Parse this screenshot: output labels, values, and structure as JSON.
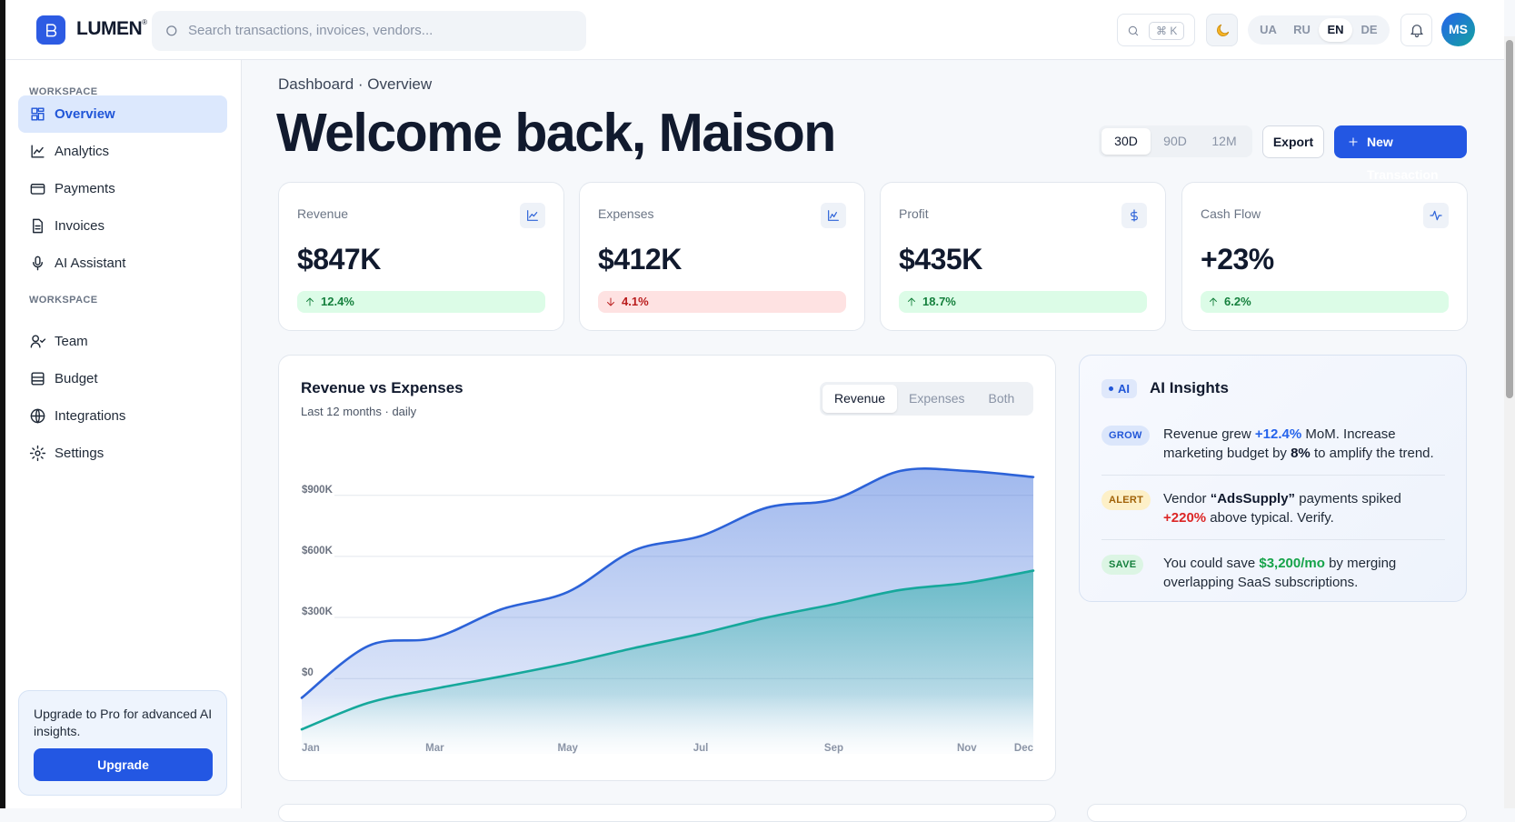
{
  "header": {
    "brand": "LUMEN",
    "brand_mark": "®",
    "search_placeholder": "Search transactions, invoices, vendors...",
    "shortcut": "⌘ K",
    "languages": [
      "UA",
      "RU",
      "EN",
      "DE"
    ],
    "avatar": "MS"
  },
  "sidebar": {
    "sections": [
      {
        "title": "WORKSPACE",
        "items": [
          "Overview",
          "Analytics",
          "Payments",
          "Invoices",
          "AI Assistant"
        ]
      },
      {
        "title": "WORKSPACE",
        "items": [
          "Team",
          "Budget",
          "Integrations",
          "Settings"
        ]
      }
    ],
    "upgrade": {
      "text": "Upgrade to Pro for advanced AI insights.",
      "button": "Upgrade"
    }
  },
  "page": {
    "breadcrumb": "Dashboard · Overview",
    "title": "Welcome back, Maison",
    "ranges": [
      "30D",
      "90D",
      "12M"
    ],
    "export": "Export",
    "new_transaction": "New Transaction"
  },
  "kpis": [
    {
      "label": "Revenue",
      "value": "$847K",
      "change": "12.4%",
      "direction": "up"
    },
    {
      "label": "Expenses",
      "value": "$412K",
      "change": "4.1%",
      "direction": "down"
    },
    {
      "label": "Profit",
      "value": "$435K",
      "change": "18.7%",
      "direction": "up"
    },
    {
      "label": "Cash Flow",
      "value": "+23%",
      "change": "6.2%",
      "direction": "up"
    }
  ],
  "insights": {
    "badge": "AI",
    "title": "AI Insights",
    "items": [
      {
        "tag": "GROW",
        "tone": "blue",
        "parts": [
          {
            "text": "Revenue grew "
          },
          {
            "text": "+12.4%",
            "tone": "blue"
          },
          {
            "text": " MoM. Increase marketing budget by "
          },
          {
            "text": "8%",
            "tone": "bold"
          },
          {
            "text": " to amplify the trend."
          }
        ]
      },
      {
        "tag": "ALERT",
        "tone": "amber",
        "parts": [
          {
            "text": "Vendor "
          },
          {
            "text": "“AdsSupply”",
            "tone": "bold"
          },
          {
            "text": " payments spiked "
          },
          {
            "text": "+220%",
            "tone": "red"
          },
          {
            "text": " above typical. Verify."
          }
        ]
      },
      {
        "tag": "SAVE",
        "tone": "green",
        "parts": [
          {
            "text": "You could save "
          },
          {
            "text": "$3,200/mo",
            "tone": "green"
          },
          {
            "text": " by merging overlapping SaaS subscriptions."
          }
        ]
      }
    ]
  },
  "chart_data": {
    "type": "area",
    "title": "Revenue vs Expenses",
    "subtitle": "Last 12 months · daily",
    "extra_tab": "Both",
    "categories": [
      "Jan",
      null,
      "Mar",
      null,
      "May",
      null,
      "Jul",
      null,
      "Sep",
      null,
      "Nov",
      "Dec"
    ],
    "series": [
      {
        "name": "Revenue",
        "color": "#2c62d8",
        "values": [
          -95000,
          160000,
          200000,
          340000,
          425000,
          630000,
          700000,
          840000,
          880000,
          1020000,
          1020000,
          990000
        ]
      },
      {
        "name": "Expenses",
        "color": "#16a89b",
        "values": [
          -250000,
          -120000,
          -50000,
          10000,
          75000,
          150000,
          220000,
          300000,
          365000,
          435000,
          470000,
          530000
        ]
      }
    ],
    "ylim": [
      -370000,
      1100000
    ],
    "yticks": [
      {
        "value": 0,
        "label": "$0"
      },
      {
        "value": 300000,
        "label": "$300K"
      },
      {
        "value": 600000,
        "label": "$600K"
      },
      {
        "value": 900000,
        "label": "$900K"
      }
    ],
    "grid": true
  }
}
